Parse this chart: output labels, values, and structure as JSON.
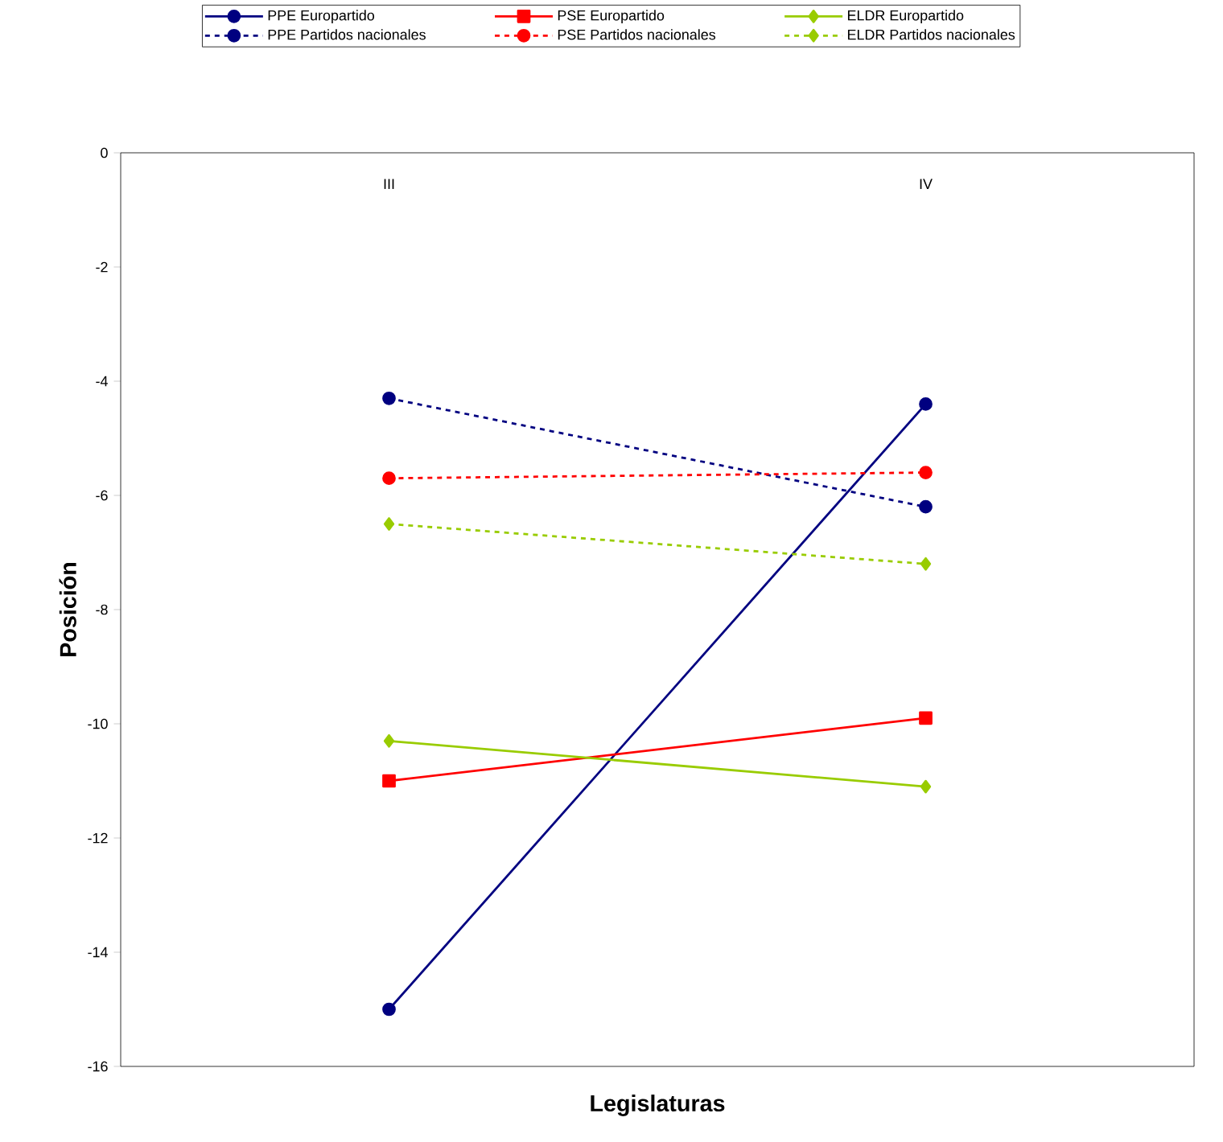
{
  "chart_data": {
    "type": "line",
    "xlabel": "Legislaturas",
    "ylabel": "Posición",
    "categories": [
      "III",
      "IV"
    ],
    "ylim": [
      -16,
      0
    ],
    "yticks": [
      0,
      -2,
      -4,
      -6,
      -8,
      -10,
      -12,
      -14,
      -16
    ],
    "legend": "top",
    "grid": false,
    "series": [
      {
        "name": "PPE Europartido",
        "color": "#000080",
        "marker": "circle",
        "line_style": "solid",
        "values": [
          -15,
          -4.4
        ]
      },
      {
        "name": "PSE Europartido",
        "color": "#ff0000",
        "marker": "square",
        "line_style": "solid",
        "values": [
          -11,
          -9.9
        ]
      },
      {
        "name": "ELDR Europartido",
        "color": "#99cc00",
        "marker": "diamond",
        "line_style": "solid",
        "values": [
          -10.3,
          -11.1
        ]
      },
      {
        "name": "PPE Partidos nacionales",
        "color": "#000080",
        "marker": "circle",
        "line_style": "dashed",
        "values": [
          -4.3,
          -6.2
        ]
      },
      {
        "name": "PSE Partidos nacionales",
        "color": "#ff0000",
        "marker": "circle",
        "line_style": "dashed",
        "values": [
          -5.7,
          -5.6
        ]
      },
      {
        "name": "ELDR Partidos nacionales",
        "color": "#99cc00",
        "marker": "diamond",
        "line_style": "dashed",
        "values": [
          -6.5,
          -7.2
        ]
      }
    ]
  }
}
